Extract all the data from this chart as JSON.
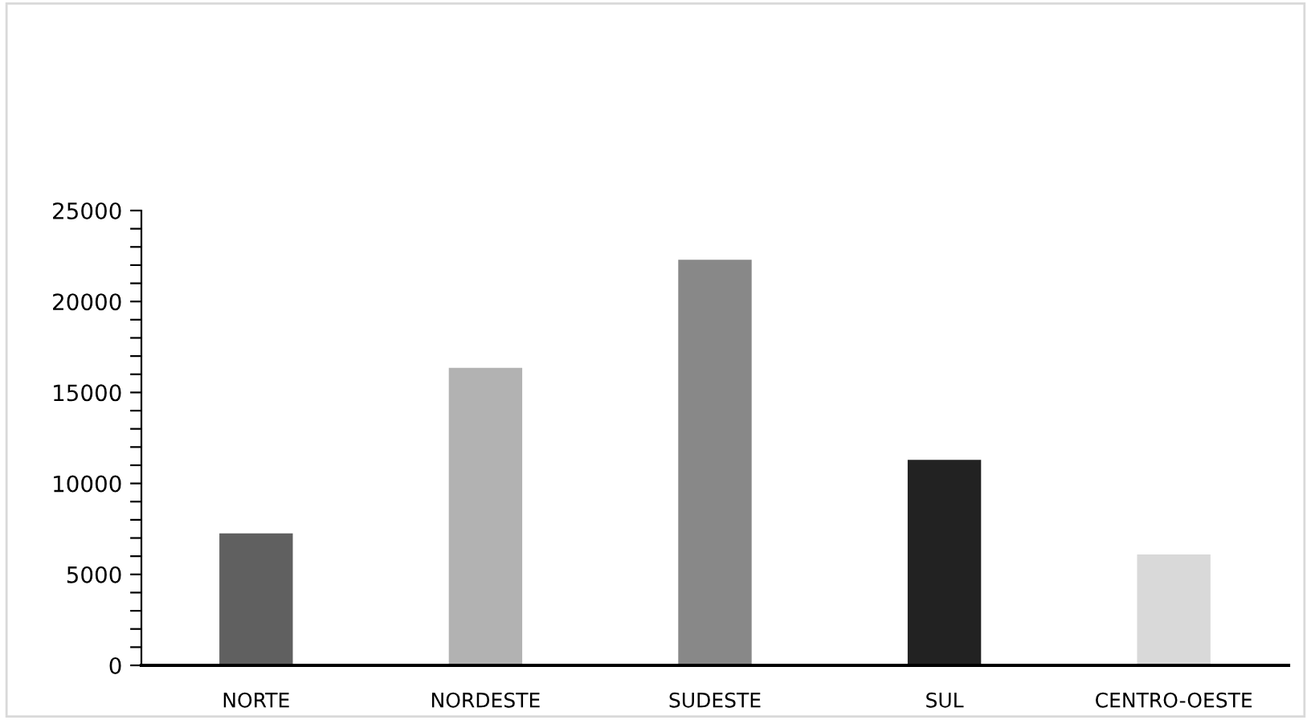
{
  "chart_data": {
    "type": "bar",
    "categories": [
      "NORTE",
      "NORDESTE",
      "SUDESTE",
      "SUL",
      "CENTRO-OESTE"
    ],
    "values": [
      7250,
      16350,
      22300,
      11300,
      6100
    ],
    "colors": [
      "#606060",
      "#b2b2b2",
      "#888888",
      "#222222",
      "#d9d9d9"
    ],
    "ylim": [
      0,
      25000
    ],
    "yticks": [
      0,
      5000,
      10000,
      15000,
      20000,
      25000
    ],
    "grid": false,
    "legend": false
  }
}
